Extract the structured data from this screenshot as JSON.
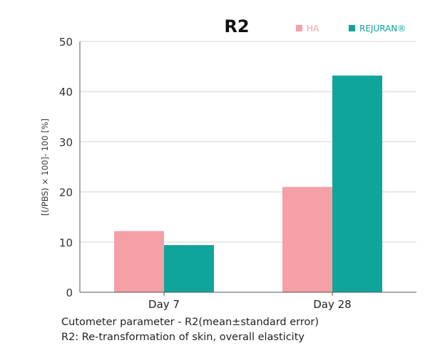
{
  "chart_data": {
    "type": "bar",
    "title": "R2",
    "ylabel": "[(/PBS) × 100]- 100 [%]",
    "xlabel": "",
    "categories": [
      "Day 7",
      "Day 28"
    ],
    "series": [
      {
        "name": "HA",
        "color": "#f4a0a6",
        "values": [
          12.2,
          21
        ]
      },
      {
        "name": "REJURAN®",
        "color": "#0fa59b",
        "values": [
          9.4,
          43.2
        ]
      }
    ],
    "ylim": [
      0,
      50
    ],
    "yticks": [
      0,
      10,
      20,
      30,
      40,
      50
    ],
    "grid": true,
    "legend": "top-right"
  },
  "captions": {
    "line1": "Cutometer parameter - R2(mean±standard error)",
    "line2": "R2: Re-transformation of skin, overall elasticity"
  }
}
